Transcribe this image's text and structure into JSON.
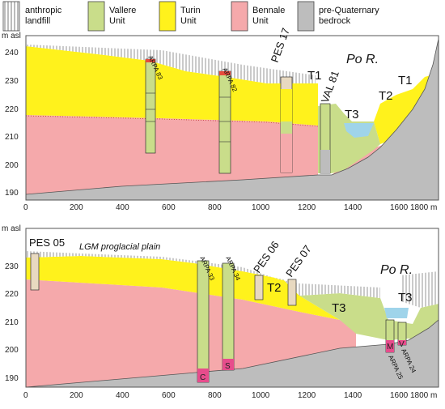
{
  "legend": [
    {
      "label": "anthropic landfill",
      "line1": "anthropic",
      "line2": "landfill",
      "color": "#ffffff",
      "pattern": "hatch"
    },
    {
      "label": "Vallere Unit",
      "line1": "Vallere",
      "line2": "Unit",
      "color": "#c9dd8a"
    },
    {
      "label": "Turin Unit",
      "line1": "Turin",
      "line2": "Unit",
      "color": "#fff21c"
    },
    {
      "label": "Bennale Unit",
      "line1": "Bennale",
      "line2": "Unit",
      "color": "#f5a9ab"
    },
    {
      "label": "pre-Quaternary bedrock",
      "line1": "pre-Quaternary",
      "line2": "bedrock",
      "color": "#bdbdbd"
    }
  ],
  "colors": {
    "water": "#9fd4ea",
    "frame": "#555555"
  },
  "section_top": {
    "y_unit": "m asl",
    "y_ticks": [
      "240",
      "230",
      "220",
      "210",
      "200",
      "190"
    ],
    "x_ticks": [
      "0",
      "200",
      "400",
      "600",
      "800",
      "1000",
      "1200",
      "1400",
      "1600",
      "1800 m"
    ],
    "boreholes": [
      "ARPA 83",
      "ARPA 82",
      "PES 17",
      "VAL 81"
    ],
    "labels": {
      "river": "Po R.",
      "t1_left": "T1",
      "t1_right": "T1",
      "t2": "T2",
      "t3": "T3"
    }
  },
  "section_bottom": {
    "y_unit": "m asl",
    "y_ticks": [
      "230",
      "220",
      "210",
      "200",
      "190"
    ],
    "x_ticks": [
      "0",
      "200",
      "400",
      "600",
      "800",
      "1000",
      "1200",
      "1400",
      "1600",
      "1800 m"
    ],
    "boreholes": [
      "PES 05",
      "ARPA 33",
      "ARPA 34",
      "PES 06",
      "PES 07",
      "ARPA 25",
      "ARPA 24"
    ],
    "labels": {
      "plain": "LGM proglacial plain",
      "river": "Po R.",
      "t2": "T2",
      "t3_left": "T3",
      "t3_right": "T3"
    },
    "bottom_letters": [
      "C",
      "S",
      "M",
      "V"
    ]
  }
}
